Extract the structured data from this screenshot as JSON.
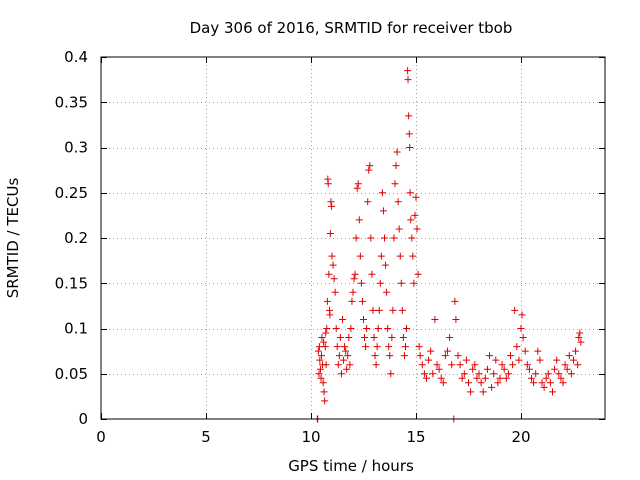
{
  "chart_data": {
    "type": "scatter",
    "title": "Day 306 of 2016, SRMTID for receiver tbob",
    "xlabel": "GPS time / hours",
    "ylabel": "SRMTID / TECUs",
    "xlim": [
      0,
      24
    ],
    "ylim": [
      0,
      0.4
    ],
    "x_ticks": [
      0,
      5,
      10,
      15,
      20
    ],
    "x_tick_labels": [
      "0",
      "5",
      "10",
      "15",
      "20"
    ],
    "y_ticks": [
      0,
      0.05,
      0.1,
      0.15,
      0.2,
      0.25,
      0.3,
      0.35,
      0.4
    ],
    "y_tick_labels": [
      "0",
      "0.05",
      "0.1",
      "0.15",
      "0.2",
      "0.25",
      "0.3",
      "0.35",
      "0.4"
    ],
    "grid": true,
    "legend": "none",
    "marker": "plus",
    "color": "#e00000",
    "series": [
      {
        "name": "SRMTID",
        "points": [
          [
            10.3,
            0.0
          ],
          [
            10.32,
            0.0
          ],
          [
            10.35,
            0.075
          ],
          [
            10.38,
            0.05
          ],
          [
            10.4,
            0.08
          ],
          [
            10.42,
            0.065
          ],
          [
            10.45,
            0.055
          ],
          [
            10.48,
            0.045
          ],
          [
            10.5,
            0.07
          ],
          [
            10.52,
            0.09
          ],
          [
            10.55,
            0.06
          ],
          [
            10.58,
            0.04
          ],
          [
            10.6,
            0.085
          ],
          [
            10.62,
            0.03
          ],
          [
            10.65,
            0.02
          ],
          [
            10.68,
            0.08
          ],
          [
            10.7,
            0.095
          ],
          [
            10.72,
            0.06
          ],
          [
            10.75,
            0.1
          ],
          [
            10.78,
            0.13
          ],
          [
            10.8,
            0.265
          ],
          [
            10.82,
            0.26
          ],
          [
            10.85,
            0.16
          ],
          [
            10.88,
            0.12
          ],
          [
            10.9,
            0.115
          ],
          [
            10.92,
            0.205
          ],
          [
            10.95,
            0.24
          ],
          [
            10.98,
            0.235
          ],
          [
            11.0,
            0.18
          ],
          [
            11.05,
            0.17
          ],
          [
            11.1,
            0.155
          ],
          [
            11.15,
            0.14
          ],
          [
            11.2,
            0.1
          ],
          [
            11.25,
            0.08
          ],
          [
            11.3,
            0.06
          ],
          [
            11.35,
            0.07
          ],
          [
            11.4,
            0.09
          ],
          [
            11.45,
            0.05
          ],
          [
            11.5,
            0.11
          ],
          [
            11.55,
            0.065
          ],
          [
            11.6,
            0.08
          ],
          [
            11.65,
            0.075
          ],
          [
            11.7,
            0.055
          ],
          [
            11.75,
            0.07
          ],
          [
            11.8,
            0.09
          ],
          [
            11.85,
            0.06
          ],
          [
            11.9,
            0.1
          ],
          [
            11.95,
            0.13
          ],
          [
            12.0,
            0.14
          ],
          [
            12.05,
            0.155
          ],
          [
            12.1,
            0.16
          ],
          [
            12.15,
            0.2
          ],
          [
            12.2,
            0.255
          ],
          [
            12.25,
            0.26
          ],
          [
            12.3,
            0.22
          ],
          [
            12.35,
            0.18
          ],
          [
            12.4,
            0.15
          ],
          [
            12.45,
            0.13
          ],
          [
            12.5,
            0.11
          ],
          [
            12.55,
            0.09
          ],
          [
            12.6,
            0.08
          ],
          [
            12.65,
            0.1
          ],
          [
            12.7,
            0.24
          ],
          [
            12.75,
            0.275
          ],
          [
            12.8,
            0.28
          ],
          [
            12.85,
            0.2
          ],
          [
            12.9,
            0.16
          ],
          [
            12.95,
            0.12
          ],
          [
            13.0,
            0.09
          ],
          [
            13.05,
            0.07
          ],
          [
            13.1,
            0.06
          ],
          [
            13.15,
            0.08
          ],
          [
            13.2,
            0.1
          ],
          [
            13.25,
            0.12
          ],
          [
            13.3,
            0.15
          ],
          [
            13.35,
            0.18
          ],
          [
            13.4,
            0.25
          ],
          [
            13.45,
            0.23
          ],
          [
            13.5,
            0.2
          ],
          [
            13.55,
            0.17
          ],
          [
            13.6,
            0.14
          ],
          [
            13.65,
            0.1
          ],
          [
            13.7,
            0.08
          ],
          [
            13.75,
            0.07
          ],
          [
            13.8,
            0.05
          ],
          [
            13.85,
            0.09
          ],
          [
            13.9,
            0.12
          ],
          [
            13.95,
            0.2
          ],
          [
            14.0,
            0.26
          ],
          [
            14.05,
            0.28
          ],
          [
            14.1,
            0.295
          ],
          [
            14.15,
            0.24
          ],
          [
            14.2,
            0.21
          ],
          [
            14.25,
            0.18
          ],
          [
            14.3,
            0.15
          ],
          [
            14.35,
            0.12
          ],
          [
            14.4,
            0.09
          ],
          [
            14.45,
            0.07
          ],
          [
            14.5,
            0.08
          ],
          [
            14.55,
            0.1
          ],
          [
            14.6,
            0.385
          ],
          [
            14.62,
            0.375
          ],
          [
            14.65,
            0.335
          ],
          [
            14.68,
            0.315
          ],
          [
            14.7,
            0.3
          ],
          [
            14.72,
            0.25
          ],
          [
            14.75,
            0.22
          ],
          [
            14.8,
            0.2
          ],
          [
            14.85,
            0.18
          ],
          [
            14.9,
            0.15
          ],
          [
            14.95,
            0.225
          ],
          [
            15.0,
            0.245
          ],
          [
            15.05,
            0.21
          ],
          [
            15.1,
            0.16
          ],
          [
            15.15,
            0.08
          ],
          [
            15.2,
            0.07
          ],
          [
            15.3,
            0.06
          ],
          [
            15.4,
            0.05
          ],
          [
            15.5,
            0.045
          ],
          [
            15.6,
            0.065
          ],
          [
            15.7,
            0.075
          ],
          [
            15.8,
            0.05
          ],
          [
            15.9,
            0.11
          ],
          [
            16.0,
            0.06
          ],
          [
            16.1,
            0.055
          ],
          [
            16.2,
            0.045
          ],
          [
            16.3,
            0.04
          ],
          [
            16.4,
            0.07
          ],
          [
            16.5,
            0.075
          ],
          [
            16.6,
            0.09
          ],
          [
            16.7,
            0.06
          ],
          [
            16.8,
            0.0
          ],
          [
            16.85,
            0.13
          ],
          [
            16.9,
            0.11
          ],
          [
            17.0,
            0.07
          ],
          [
            17.1,
            0.06
          ],
          [
            17.2,
            0.045
          ],
          [
            17.3,
            0.05
          ],
          [
            17.4,
            0.065
          ],
          [
            17.5,
            0.04
          ],
          [
            17.6,
            0.03
          ],
          [
            17.7,
            0.055
          ],
          [
            17.8,
            0.06
          ],
          [
            17.9,
            0.045
          ],
          [
            18.0,
            0.05
          ],
          [
            18.1,
            0.04
          ],
          [
            18.2,
            0.03
          ],
          [
            18.3,
            0.045
          ],
          [
            18.4,
            0.055
          ],
          [
            18.5,
            0.07
          ],
          [
            18.6,
            0.035
          ],
          [
            18.7,
            0.05
          ],
          [
            18.8,
            0.065
          ],
          [
            18.9,
            0.04
          ],
          [
            19.0,
            0.045
          ],
          [
            19.1,
            0.06
          ],
          [
            19.2,
            0.055
          ],
          [
            19.3,
            0.045
          ],
          [
            19.4,
            0.05
          ],
          [
            19.5,
            0.07
          ],
          [
            19.6,
            0.06
          ],
          [
            19.7,
            0.12
          ],
          [
            19.8,
            0.08
          ],
          [
            19.9,
            0.065
          ],
          [
            20.0,
            0.1
          ],
          [
            20.05,
            0.115
          ],
          [
            20.1,
            0.09
          ],
          [
            20.2,
            0.075
          ],
          [
            20.3,
            0.06
          ],
          [
            20.4,
            0.055
          ],
          [
            20.5,
            0.045
          ],
          [
            20.6,
            0.04
          ],
          [
            20.7,
            0.05
          ],
          [
            20.8,
            0.075
          ],
          [
            20.9,
            0.065
          ],
          [
            21.0,
            0.04
          ],
          [
            21.1,
            0.035
          ],
          [
            21.2,
            0.045
          ],
          [
            21.3,
            0.05
          ],
          [
            21.4,
            0.04
          ],
          [
            21.5,
            0.03
          ],
          [
            21.6,
            0.055
          ],
          [
            21.7,
            0.065
          ],
          [
            21.8,
            0.05
          ],
          [
            21.9,
            0.045
          ],
          [
            22.0,
            0.04
          ],
          [
            22.1,
            0.06
          ],
          [
            22.2,
            0.055
          ],
          [
            22.3,
            0.07
          ],
          [
            22.4,
            0.05
          ],
          [
            22.5,
            0.065
          ],
          [
            22.6,
            0.075
          ],
          [
            22.7,
            0.06
          ],
          [
            22.75,
            0.09
          ],
          [
            22.8,
            0.095
          ],
          [
            22.85,
            0.085
          ]
        ]
      }
    ]
  }
}
